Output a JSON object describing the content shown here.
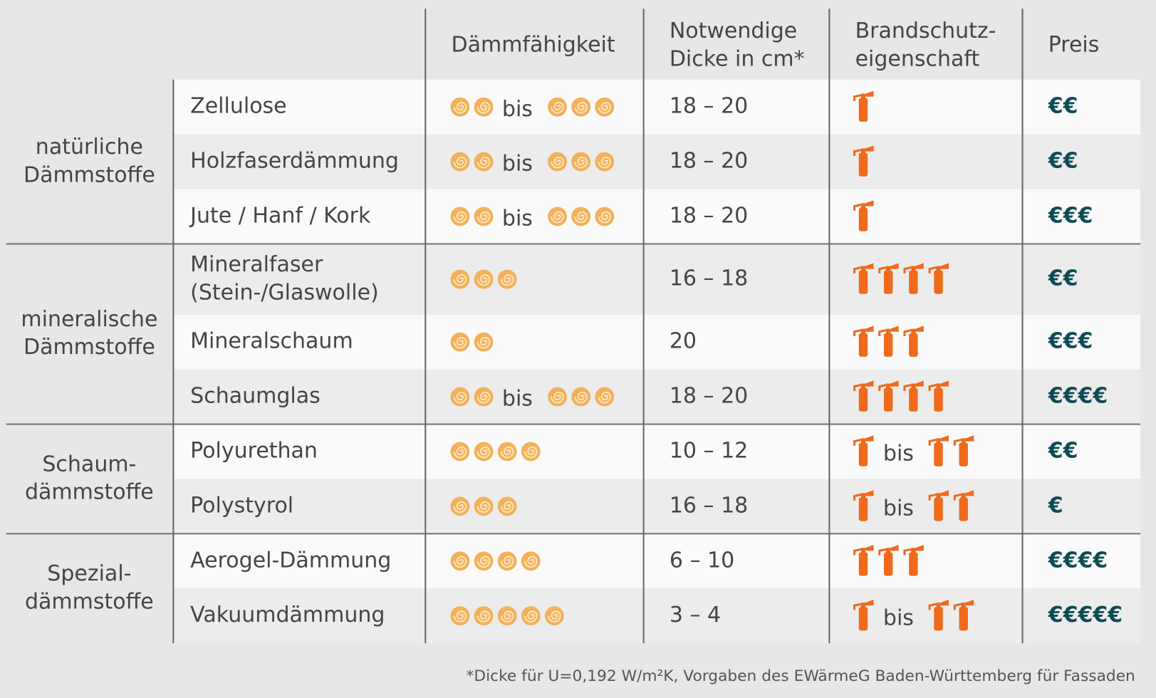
{
  "header": {
    "columns": [
      [
        "Dämmfähigkeit"
      ],
      [
        "Notwendige",
        "Dicke in cm*"
      ],
      [
        "Brandschutz-",
        "eigenschaft"
      ],
      [
        "Preis"
      ]
    ]
  },
  "range_word": "bis",
  "groups": [
    {
      "label": [
        "natürliche",
        "Dämmstoffe"
      ],
      "rows": [
        {
          "name": [
            "Zellulose"
          ],
          "insulation": [
            2,
            3
          ],
          "thickness": "18 – 20",
          "fire": [
            1
          ],
          "price": "€€"
        },
        {
          "name": [
            "Holzfaserdämmung"
          ],
          "insulation": [
            2,
            3
          ],
          "thickness": "18 – 20",
          "fire": [
            1
          ],
          "price": "€€"
        },
        {
          "name": [
            "Jute / Hanf / Kork"
          ],
          "insulation": [
            2,
            3
          ],
          "thickness": "18 – 20",
          "fire": [
            1
          ],
          "price": "€€€"
        }
      ]
    },
    {
      "label": [
        "mineralische",
        "Dämmstoffe"
      ],
      "rows": [
        {
          "name": [
            "Mineralfaser",
            "(Stein-/Glaswolle)"
          ],
          "insulation": [
            3
          ],
          "thickness": "16 – 18",
          "fire": [
            4
          ],
          "price": "€€"
        },
        {
          "name": [
            "Mineralschaum"
          ],
          "insulation": [
            2
          ],
          "thickness": "20",
          "fire": [
            3
          ],
          "price": "€€€"
        },
        {
          "name": [
            "Schaumglas"
          ],
          "insulation": [
            2,
            3
          ],
          "thickness": "18 – 20",
          "fire": [
            4
          ],
          "price": "€€€€"
        }
      ]
    },
    {
      "label": [
        "Schaum-",
        "dämmstoffe"
      ],
      "rows": [
        {
          "name": [
            "Polyurethan"
          ],
          "insulation": [
            4
          ],
          "thickness": "10 – 12",
          "fire": [
            1,
            2
          ],
          "price": "€€"
        },
        {
          "name": [
            "Polystyrol"
          ],
          "insulation": [
            3
          ],
          "thickness": "16 – 18",
          "fire": [
            1,
            2
          ],
          "price": "€"
        }
      ]
    },
    {
      "label": [
        "Spezial-",
        "dämmstoffe"
      ],
      "rows": [
        {
          "name": [
            "Aerogel-Dämmung"
          ],
          "insulation": [
            4
          ],
          "thickness": "6 – 10",
          "fire": [
            3
          ],
          "price": "€€€€"
        },
        {
          "name": [
            "Vakuumdämmung"
          ],
          "insulation": [
            5
          ],
          "thickness": "3 – 4",
          "fire": [
            1,
            2
          ],
          "price": "€€€€€"
        }
      ]
    }
  ],
  "footnote": "*Dicke für U=0,192 W/m²K, Vorgaben des EWärmeG Baden-Württemberg für Fassaden"
}
